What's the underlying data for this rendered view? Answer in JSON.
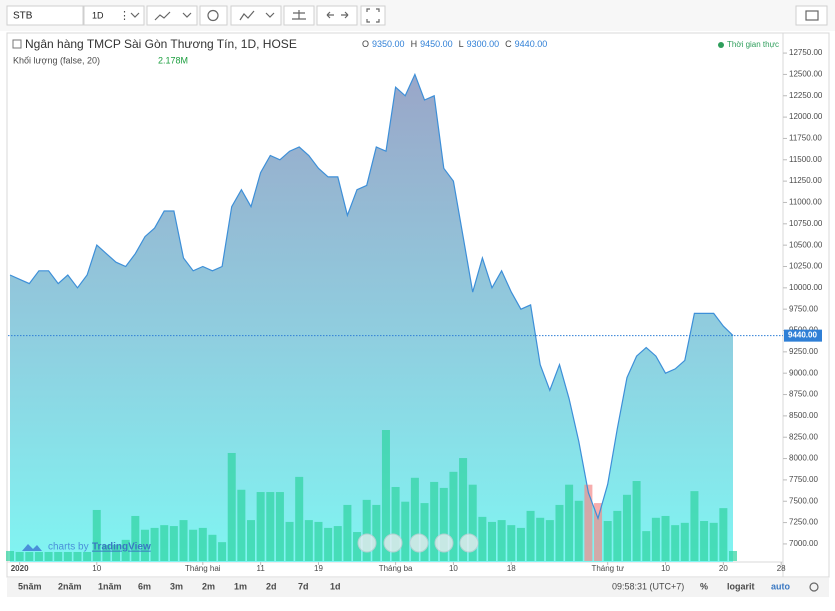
{
  "toolbar": {
    "symbol": "STB",
    "interval": "1D"
  },
  "chart_data": {
    "type": "area",
    "title": "Ngân hàng TMCP Sài Gòn Thương Tín, 1D, HOSE",
    "ohlc": [
      {
        "key": "O",
        "value": "9350.00"
      },
      {
        "key": "H",
        "value": "9450.00"
      },
      {
        "key": "L",
        "value": "9300.00"
      },
      {
        "key": "C",
        "value": "9440.00"
      }
    ],
    "status": "Thời gian thực",
    "volume_title": "Khối lượng (false, 20)",
    "volume_last": "2.178M",
    "color": "#3d8fd8",
    "categories": [
      null,
      "2020",
      null,
      null,
      null,
      null,
      null,
      null,
      null,
      "10",
      null,
      null,
      null,
      null,
      null,
      null,
      null,
      null,
      null,
      null,
      "Tháng hai",
      null,
      null,
      null,
      null,
      null,
      "11",
      null,
      null,
      null,
      null,
      null,
      "19",
      null,
      null,
      null,
      null,
      null,
      null,
      null,
      "Tháng ba",
      null,
      null,
      null,
      null,
      null,
      "10",
      null,
      null,
      null,
      null,
      null,
      "18",
      null,
      null,
      null,
      null,
      null,
      null,
      null,
      null,
      null,
      "Tháng tư",
      null,
      null,
      null,
      null,
      null,
      "10",
      null,
      null,
      null,
      null,
      null,
      "20",
      null,
      null,
      null,
      null,
      null,
      "28"
    ],
    "values": [
      10150,
      10100,
      10050,
      10200,
      10200,
      10050,
      10150,
      10000,
      10150,
      10500,
      10400,
      10300,
      10250,
      10400,
      10600,
      10700,
      10900,
      10900,
      10350,
      10200,
      10250,
      10200,
      10250,
      10950,
      11150,
      10950,
      11350,
      11550,
      11500,
      11600,
      11650,
      11550,
      11400,
      11300,
      11300,
      10850,
      11150,
      11200,
      11650,
      11600,
      12350,
      12250,
      12500,
      12200,
      12250,
      11400,
      11250,
      10600,
      9950,
      10350,
      10000,
      10200,
      9950,
      9750,
      9800,
      9100,
      8800,
      9100,
      8700,
      8200,
      7600,
      7300,
      7700,
      8350,
      8950,
      9200,
      9300,
      9200,
      9000,
      9050,
      9150,
      9700,
      9700,
      9700,
      9550,
      9440,
      null,
      null,
      null,
      null,
      null
    ],
    "last_value_label": "9440.00",
    "volume": {
      "values": [
        2.18,
        1.96,
        1.96,
        1.96,
        1.96,
        1.96,
        1.96,
        1.96,
        1.96,
        11.1,
        3.5,
        3.5,
        4.6,
        9.8,
        6.8,
        7.2,
        7.8,
        7.6,
        8.9,
        6.8,
        7.2,
        5.7,
        4.1,
        23.5,
        15.5,
        8.9,
        15.0,
        15.0,
        15.0,
        8.5,
        18.3,
        8.9,
        8.5,
        7.2,
        7.6,
        12.2,
        6.3,
        13.3,
        12.2,
        28.5,
        16.1,
        12.9,
        18.1,
        12.6,
        17.2,
        15.9,
        19.4,
        22.4,
        16.6,
        9.6,
        8.5,
        8.9,
        7.8,
        7.2,
        10.9,
        9.4,
        8.9,
        12.2,
        16.6,
        13.1,
        16.6,
        12.6,
        8.7,
        10.9,
        14.4,
        17.4,
        6.5,
        9.4,
        9.8,
        7.8,
        8.3,
        15.2,
        8.7,
        8.3,
        11.5,
        2.178,
        null,
        null,
        null,
        null,
        null
      ],
      "color": "#2ed3a0",
      "down_color": "#f48a8a",
      "down_indices": [
        60,
        61
      ]
    },
    "ylim": [
      6800,
      12950
    ],
    "yticks": [
      {
        "value": 7000,
        "label": "7000.00"
      },
      {
        "value": 7250,
        "label": "7250.00"
      },
      {
        "value": 7500,
        "label": "7500.00"
      },
      {
        "value": 7750,
        "label": "7750.00"
      },
      {
        "value": 8000,
        "label": "8000.00"
      },
      {
        "value": 8250,
        "label": "8250.00"
      },
      {
        "value": 8500,
        "label": "8500.00"
      },
      {
        "value": 8750,
        "label": "8750.00"
      },
      {
        "value": 9000,
        "label": "9000.00"
      },
      {
        "value": 9250,
        "label": "9250.00"
      },
      {
        "value": 9500,
        "label": "9500.00"
      },
      {
        "value": 9750,
        "label": "9750.00"
      },
      {
        "value": 10000,
        "label": "10000.00"
      },
      {
        "value": 10250,
        "label": "10250.00"
      },
      {
        "value": 10500,
        "label": "10500.00"
      },
      {
        "value": 10750,
        "label": "10750.00"
      },
      {
        "value": 11000,
        "label": "11000.00"
      },
      {
        "value": 11250,
        "label": "11250.00"
      },
      {
        "value": 11500,
        "label": "11500.00"
      },
      {
        "value": 11750,
        "label": "11750.00"
      },
      {
        "value": 12000,
        "label": "12000.00"
      },
      {
        "value": 12250,
        "label": "12250.00"
      },
      {
        "value": 12500,
        "label": "12500.00"
      },
      {
        "value": 12750,
        "label": "12750.00"
      }
    ],
    "grid": false
  },
  "watermark": {
    "prefix": "charts by",
    "brand": "TradingView"
  },
  "footer": {
    "ranges": [
      "5năm",
      "2năm",
      "1năm",
      "6m",
      "3m",
      "2m",
      "1m",
      "2d",
      "7d",
      "1d"
    ],
    "time": "09:58:31 (UTC+7)",
    "percent": "%",
    "log": "logarit",
    "auto": "auto"
  }
}
